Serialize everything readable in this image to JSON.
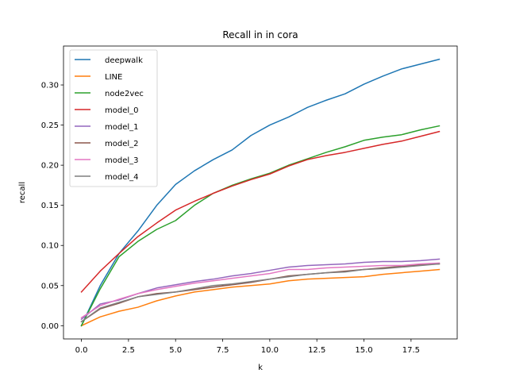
{
  "chart_data": {
    "type": "line",
    "title": "Recall in in cora",
    "xlabel": "k",
    "ylabel": "recall",
    "xlim": [
      -0.95,
      19.95
    ],
    "ylim": [
      -0.0165,
      0.3485
    ],
    "xticks": [
      0.0,
      2.5,
      5.0,
      7.5,
      10.0,
      12.5,
      15.0,
      17.5
    ],
    "xtick_labels": [
      "0.0",
      "2.5",
      "5.0",
      "7.5",
      "10.0",
      "12.5",
      "15.0",
      "17.5"
    ],
    "yticks": [
      0.0,
      0.05,
      0.1,
      0.15,
      0.2,
      0.25,
      0.3
    ],
    "ytick_labels": [
      "0.00",
      "0.05",
      "0.10",
      "0.15",
      "0.20",
      "0.25",
      "0.30"
    ],
    "grid": false,
    "legend_position": "top-left",
    "x": [
      0,
      1,
      2,
      3,
      4,
      5,
      6,
      7,
      8,
      9,
      10,
      11,
      12,
      13,
      14,
      15,
      16,
      17,
      18,
      19
    ],
    "series": [
      {
        "name": "deepwalk",
        "color": "#1f77b4",
        "values": [
          0.0,
          0.05,
          0.09,
          0.118,
          0.15,
          0.176,
          0.193,
          0.207,
          0.219,
          0.237,
          0.25,
          0.26,
          0.272,
          0.281,
          0.289,
          0.301,
          0.311,
          0.32,
          0.326,
          0.332
        ]
      },
      {
        "name": "LINE",
        "color": "#ff7f0e",
        "values": [
          0.0,
          0.011,
          0.018,
          0.023,
          0.031,
          0.037,
          0.042,
          0.045,
          0.048,
          0.05,
          0.052,
          0.056,
          0.058,
          0.059,
          0.06,
          0.061,
          0.064,
          0.066,
          0.068,
          0.07
        ]
      },
      {
        "name": "node2vec",
        "color": "#2ca02c",
        "values": [
          0.0,
          0.046,
          0.086,
          0.105,
          0.12,
          0.131,
          0.15,
          0.165,
          0.175,
          0.183,
          0.19,
          0.2,
          0.208,
          0.216,
          0.223,
          0.231,
          0.235,
          0.238,
          0.244,
          0.249
        ]
      },
      {
        "name": "model_0",
        "color": "#d62728",
        "values": [
          0.042,
          0.068,
          0.09,
          0.111,
          0.128,
          0.144,
          0.155,
          0.165,
          0.174,
          0.182,
          0.189,
          0.199,
          0.207,
          0.212,
          0.216,
          0.221,
          0.226,
          0.23,
          0.236,
          0.242
        ]
      },
      {
        "name": "model_1",
        "color": "#9467bd",
        "values": [
          0.008,
          0.027,
          0.032,
          0.04,
          0.047,
          0.051,
          0.055,
          0.058,
          0.062,
          0.065,
          0.069,
          0.073,
          0.075,
          0.076,
          0.077,
          0.079,
          0.08,
          0.08,
          0.081,
          0.083
        ]
      },
      {
        "name": "model_2",
        "color": "#8c564b",
        "values": [
          0.005,
          0.021,
          0.028,
          0.036,
          0.04,
          0.042,
          0.045,
          0.048,
          0.051,
          0.054,
          0.058,
          0.062,
          0.064,
          0.066,
          0.068,
          0.07,
          0.072,
          0.074,
          0.076,
          0.077
        ]
      },
      {
        "name": "model_3",
        "color": "#e377c2",
        "values": [
          0.01,
          0.025,
          0.033,
          0.04,
          0.045,
          0.049,
          0.053,
          0.056,
          0.059,
          0.062,
          0.065,
          0.07,
          0.07,
          0.072,
          0.073,
          0.074,
          0.075,
          0.075,
          0.077,
          0.078
        ]
      },
      {
        "name": "model_4",
        "color": "#7f7f7f",
        "values": [
          0.005,
          0.022,
          0.029,
          0.036,
          0.039,
          0.042,
          0.046,
          0.05,
          0.052,
          0.055,
          0.058,
          0.061,
          0.064,
          0.066,
          0.067,
          0.07,
          0.071,
          0.073,
          0.075,
          0.077
        ]
      }
    ]
  }
}
